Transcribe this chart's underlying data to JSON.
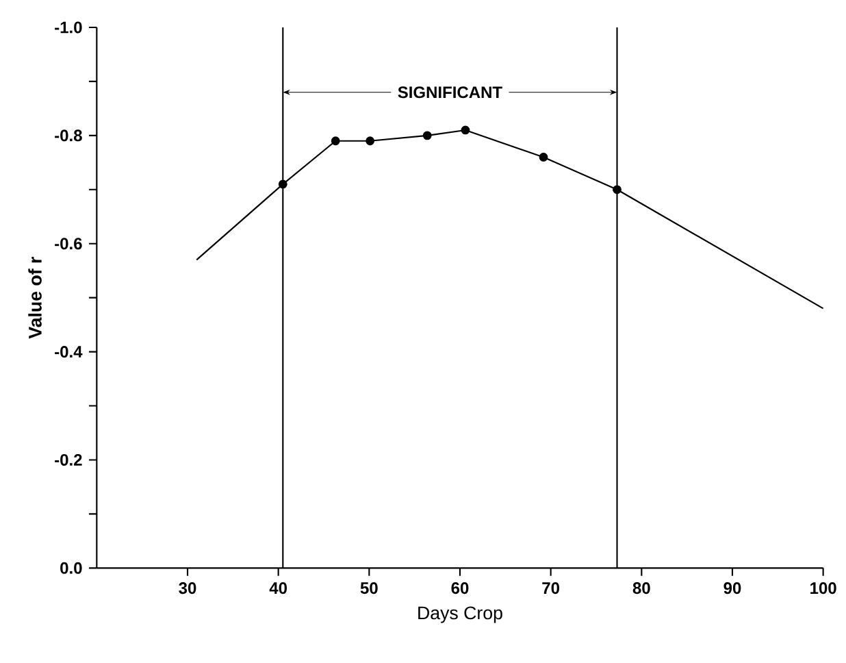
{
  "chart_data": {
    "type": "line",
    "xlabel": "Days Crop",
    "ylabel": "Value of r",
    "xlim": [
      20,
      100
    ],
    "xticks": [
      30,
      40,
      50,
      60,
      70,
      80,
      90,
      100
    ],
    "ylim": [
      0,
      -1.0
    ],
    "yticks": [
      {
        "value": 0,
        "label": "0.0"
      },
      {
        "value": -0.1,
        "label": null
      },
      {
        "value": -0.2,
        "label": "-0.2"
      },
      {
        "value": -0.3,
        "label": null
      },
      {
        "value": -0.4,
        "label": "-0.4"
      },
      {
        "value": -0.5,
        "label": null
      },
      {
        "value": -0.6,
        "label": "-0.6"
      },
      {
        "value": -0.7,
        "label": null
      },
      {
        "value": -0.8,
        "label": "-0.8"
      },
      {
        "value": -0.9,
        "label": null
      },
      {
        "value": -1.0,
        "label": "-1.0"
      }
    ],
    "series": [
      {
        "color": "#000000",
        "marker": "none",
        "x": [
          31,
          40.5,
          46.3,
          50.1,
          56.4,
          60.6,
          69.2,
          77.3,
          100
        ],
        "values": [
          -0.57,
          -0.71,
          -0.79,
          -0.79,
          -0.8,
          -0.81,
          -0.76,
          -0.7,
          -0.48
        ]
      },
      {
        "type": "scatter",
        "color": "#000000",
        "marker": "circle",
        "x": [
          40.5,
          46.3,
          50.1,
          56.4,
          60.6,
          69.2,
          77.3
        ],
        "values": [
          -0.71,
          -0.79,
          -0.79,
          -0.8,
          -0.81,
          -0.76,
          -0.7
        ]
      }
    ],
    "ref_lines": [
      {
        "axis": "x",
        "value": 40.5,
        "color": "#000000"
      },
      {
        "axis": "x",
        "value": 77.3,
        "color": "#000000"
      }
    ],
    "annotations": [
      {
        "text": "SIGNIFICANT",
        "x": 40.5,
        "y": -0.88
      }
    ],
    "grid": false
  }
}
